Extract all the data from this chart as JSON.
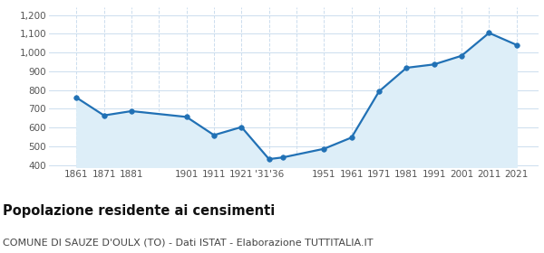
{
  "years": [
    1861,
    1871,
    1881,
    1901,
    1911,
    1921,
    1931,
    1936,
    1951,
    1961,
    1971,
    1981,
    1991,
    2001,
    2011,
    2021
  ],
  "population": [
    760,
    665,
    688,
    657,
    560,
    603,
    432,
    441,
    487,
    547,
    793,
    919,
    937,
    983,
    1105,
    1041
  ],
  "line_color": "#2171b5",
  "fill_color": "#ddeef8",
  "marker_color": "#2171b5",
  "background_color": "#ffffff",
  "grid_color_h": "#ccddee",
  "grid_color_v": "#ccddee",
  "title": "Popolazione residente ai censimenti",
  "subtitle": "COMUNE DI SAUZE D'OULX (TO) - Dati ISTAT - Elaborazione TUTTITALIA.IT",
  "ylim": [
    390,
    1240
  ],
  "yticks": [
    400,
    500,
    600,
    700,
    800,
    900,
    1000,
    1100,
    1200
  ],
  "xlim_left": 1851,
  "xlim_right": 2029,
  "title_fontsize": 10.5,
  "subtitle_fontsize": 8,
  "tick_fontsize": 7.5
}
